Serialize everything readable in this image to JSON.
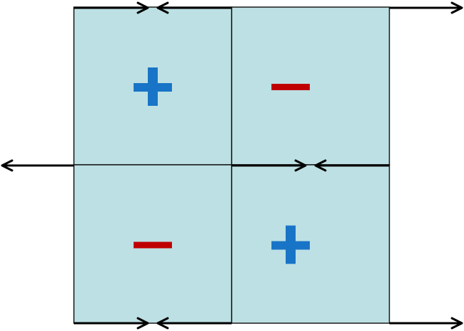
{
  "colors": {
    "cell_fill": "#bde0e4",
    "cell_border": "#1a1a1a",
    "arrow": "#000000",
    "plus": "#1874c6",
    "minus": "#c00000",
    "background": "#ffffff"
  },
  "cells": [
    {
      "id": "top-left",
      "row": 0,
      "col": 0,
      "sign": "plus"
    },
    {
      "id": "top-right",
      "row": 0,
      "col": 1,
      "sign": "minus"
    },
    {
      "id": "bottom-left",
      "row": 1,
      "col": 0,
      "sign": "minus"
    },
    {
      "id": "bottom-right",
      "row": 1,
      "col": 1,
      "sign": "plus"
    }
  ],
  "arrows": [
    {
      "id": "top-left-edge-right",
      "direction": "right"
    },
    {
      "id": "top-mid-edge-left",
      "direction": "left"
    },
    {
      "id": "top-right-outer-right",
      "direction": "right"
    },
    {
      "id": "middle-left-outer-left",
      "direction": "left"
    },
    {
      "id": "middle-center-right",
      "direction": "right"
    },
    {
      "id": "middle-right-left",
      "direction": "left"
    },
    {
      "id": "bottom-left-edge-right",
      "direction": "right"
    },
    {
      "id": "bottom-mid-edge-left",
      "direction": "left"
    },
    {
      "id": "bottom-right-outer-right",
      "direction": "right"
    }
  ]
}
